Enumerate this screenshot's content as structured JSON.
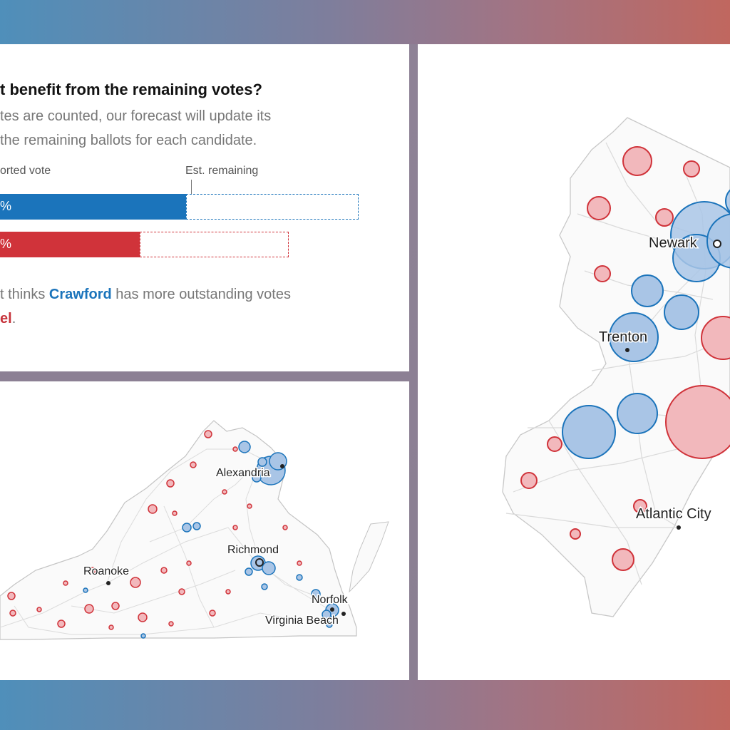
{
  "colors": {
    "blue": "#1b74bb",
    "red": "#d0333a",
    "blue_fill": "#a9c5e6",
    "red_fill": "#f2b8bc"
  },
  "forecast": {
    "heading": "t benefit from the remaining votes?",
    "body_line1": "tes are counted, our forecast will update its",
    "body_line2": "the remaining ballots for each candidate.",
    "reported_label": "orted vote",
    "remaining_label": "Est. remaining",
    "bars": [
      {
        "candidate": "Crawford",
        "pct_label": "%",
        "reported_fraction": 0.52,
        "total_fraction": 1.0,
        "color": "#1b74bb"
      },
      {
        "candidate": "Schimel",
        "pct_label": "%",
        "reported_fraction": 0.39,
        "total_fraction": 0.8,
        "color": "#d0333a"
      }
    ],
    "summary_pre": "t thinks ",
    "summary_cand_blue": "Crawford",
    "summary_post": " has more outstanding votes",
    "summary_cand_red": "el",
    "summary_end": "."
  },
  "virginia": {
    "cities": {
      "alexandria": "Alexandria",
      "richmond": "Richmond",
      "roanoke": "Roanoke",
      "norfolk": "Norfolk",
      "virginia_beach": "Virginia Beach"
    }
  },
  "new_jersey": {
    "cities": {
      "newark": "Newark",
      "trenton": "Trenton",
      "atlantic_city": "Atlantic City"
    }
  }
}
